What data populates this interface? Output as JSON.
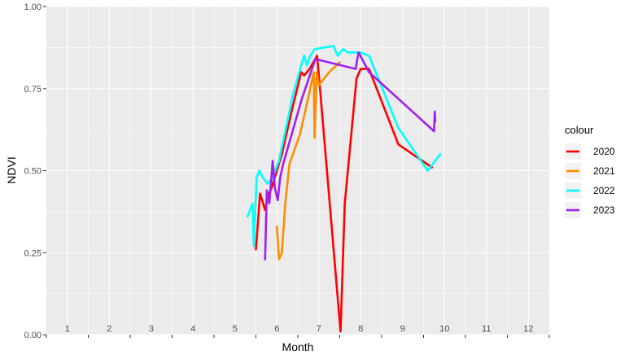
{
  "chart_data": {
    "type": "line",
    "title": "",
    "xlabel": "Month",
    "ylabel": "NDVI",
    "xlim": [
      0.5,
      12.5
    ],
    "ylim": [
      0,
      1
    ],
    "x_ticks": [
      "1",
      "2",
      "3",
      "4",
      "5",
      "6",
      "7",
      "8",
      "9",
      "10",
      "11",
      "12"
    ],
    "y_ticks": [
      "0.00",
      "0.25",
      "0.50",
      "0.75",
      "1.00"
    ],
    "y_tick_values": [
      0,
      0.25,
      0.5,
      0.75,
      1.0
    ],
    "grid": true,
    "panel_background": "#ebebeb",
    "grid_color": "#ffffff",
    "legend": {
      "title": "colour",
      "position": "right"
    },
    "series": [
      {
        "name": "2020",
        "color": "#ff0000",
        "x": [
          5.5,
          5.6,
          5.72,
          5.78,
          5.88,
          6.12,
          6.35,
          6.58,
          6.65,
          6.72,
          6.78,
          6.96,
          7.05,
          7.52,
          7.62,
          7.9,
          8.0,
          8.2,
          8.9,
          9.7
        ],
        "y": [
          0.26,
          0.43,
          0.38,
          0.42,
          0.45,
          0.55,
          0.68,
          0.8,
          0.79,
          0.8,
          0.81,
          0.85,
          0.72,
          0.01,
          0.4,
          0.78,
          0.81,
          0.81,
          0.58,
          0.51
        ]
      },
      {
        "name": "2021",
        "color": "#ff8c00",
        "x": [
          6.0,
          6.05,
          6.12,
          6.2,
          6.3,
          6.55,
          6.78,
          6.88,
          6.9,
          6.95,
          7.0,
          7.25,
          7.5
        ],
        "y": [
          0.33,
          0.23,
          0.25,
          0.4,
          0.52,
          0.61,
          0.74,
          0.8,
          0.6,
          0.8,
          0.76,
          0.8,
          0.83
        ]
      },
      {
        "name": "2022",
        "color": "#00ffff",
        "x": [
          5.3,
          5.42,
          5.45,
          5.52,
          5.58,
          5.66,
          5.78,
          5.9,
          6.05,
          6.2,
          6.4,
          6.58,
          6.65,
          6.72,
          6.8,
          6.9,
          7.35,
          7.45,
          7.58,
          7.7,
          8.0,
          8.2,
          8.9,
          9.6,
          9.9
        ],
        "y": [
          0.36,
          0.4,
          0.27,
          0.48,
          0.5,
          0.48,
          0.46,
          0.48,
          0.53,
          0.62,
          0.74,
          0.82,
          0.85,
          0.82,
          0.85,
          0.87,
          0.88,
          0.85,
          0.87,
          0.86,
          0.86,
          0.85,
          0.63,
          0.5,
          0.55
        ]
      },
      {
        "name": "2023",
        "color": "#a020f0",
        "x": [
          5.72,
          5.76,
          5.82,
          5.9,
          5.95,
          6.02,
          6.08,
          6.15,
          6.6,
          6.92,
          7.88,
          7.92,
          7.95,
          8.2,
          9.75,
          9.77,
          9.78
        ],
        "y": [
          0.23,
          0.44,
          0.4,
          0.53,
          0.45,
          0.41,
          0.48,
          0.52,
          0.72,
          0.84,
          0.81,
          0.84,
          0.86,
          0.8,
          0.62,
          0.68,
          0.65
        ]
      }
    ]
  }
}
